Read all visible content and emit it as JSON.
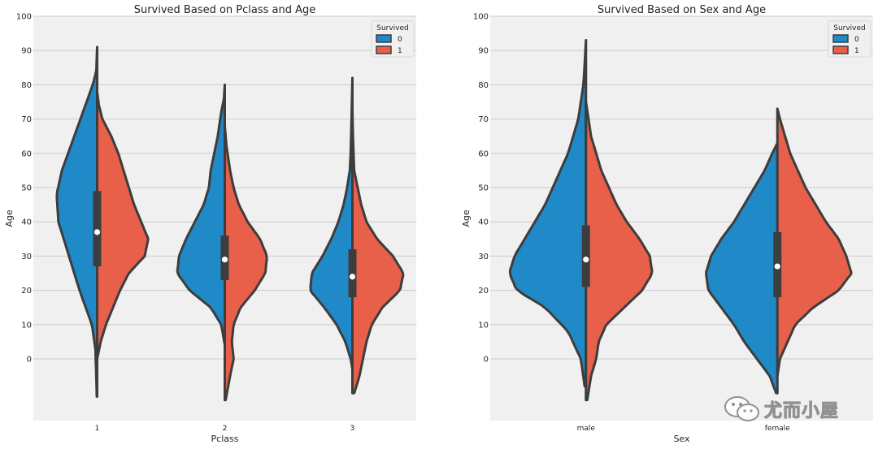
{
  "chart_data": [
    {
      "type": "violin",
      "title": "Survived Based on Pclass and Age",
      "xlabel": "Pclass",
      "ylabel": "Age",
      "categories": [
        "1",
        "2",
        "3"
      ],
      "yticks": [
        0,
        10,
        20,
        30,
        40,
        50,
        60,
        70,
        80,
        90,
        100
      ],
      "ylim": [
        -18,
        100
      ],
      "split": true,
      "legend": {
        "title": "Survived",
        "position": "top-right",
        "entries": [
          {
            "label": "0",
            "color": "#1f8ac7"
          },
          {
            "label": "1",
            "color": "#e8604a"
          }
        ]
      },
      "violins": [
        {
          "category": "1",
          "min": -11,
          "max": 91,
          "q1": 27,
          "q3": 49,
          "median": 37,
          "left_profile": [
            [
              -11,
              0.2
            ],
            [
              -5,
              0.5
            ],
            [
              3,
              1
            ],
            [
              10,
              3
            ],
            [
              20,
              10
            ],
            [
              30,
              16
            ],
            [
              40,
              22
            ],
            [
              48,
              23
            ],
            [
              55,
              20
            ],
            [
              65,
              13
            ],
            [
              75,
              6
            ],
            [
              80,
              2.5
            ],
            [
              84,
              0.5
            ],
            [
              91,
              0
            ]
          ],
          "right_profile": [
            [
              0,
              0
            ],
            [
              5,
              2
            ],
            [
              10,
              5
            ],
            [
              15,
              9
            ],
            [
              20,
              13
            ],
            [
              25,
              18
            ],
            [
              30,
              27
            ],
            [
              35,
              29
            ],
            [
              40,
              25
            ],
            [
              45,
              21
            ],
            [
              50,
              18
            ],
            [
              55,
              15
            ],
            [
              60,
              12
            ],
            [
              65,
              8
            ],
            [
              70,
              3
            ],
            [
              74,
              1
            ],
            [
              78,
              0
            ]
          ]
        },
        {
          "category": "2",
          "min": -12,
          "max": 80,
          "q1": 23,
          "q3": 36,
          "median": 29,
          "left_profile": [
            [
              4,
              0
            ],
            [
              10,
              2
            ],
            [
              15,
              8
            ],
            [
              20,
              20
            ],
            [
              25,
              27
            ],
            [
              30,
              26
            ],
            [
              35,
              22
            ],
            [
              40,
              17
            ],
            [
              45,
              12
            ],
            [
              50,
              9
            ],
            [
              55,
              8
            ],
            [
              60,
              6
            ],
            [
              65,
              4
            ],
            [
              72,
              2
            ],
            [
              76,
              0.5
            ],
            [
              80,
              0
            ]
          ],
          "right_profile": [
            [
              -12,
              0.5
            ],
            [
              -5,
              3
            ],
            [
              0,
              5
            ],
            [
              5,
              4
            ],
            [
              10,
              5
            ],
            [
              15,
              9
            ],
            [
              20,
              17
            ],
            [
              25,
              23
            ],
            [
              30,
              24
            ],
            [
              35,
              20
            ],
            [
              40,
              13
            ],
            [
              45,
              8
            ],
            [
              50,
              5
            ],
            [
              55,
              3
            ],
            [
              62,
              1
            ],
            [
              68,
              0
            ]
          ]
        },
        {
          "category": "3",
          "min": -10,
          "max": 82,
          "q1": 18,
          "q3": 32,
          "median": 24,
          "left_profile": [
            [
              -3,
              0
            ],
            [
              0,
              1
            ],
            [
              5,
              4
            ],
            [
              10,
              9
            ],
            [
              15,
              16
            ],
            [
              20,
              24
            ],
            [
              25,
              23
            ],
            [
              30,
              17
            ],
            [
              35,
              12
            ],
            [
              40,
              8
            ],
            [
              45,
              5
            ],
            [
              50,
              3
            ],
            [
              55,
              1.5
            ],
            [
              60,
              1
            ],
            [
              70,
              0.5
            ],
            [
              82,
              0
            ]
          ],
          "right_profile": [
            [
              -10,
              1
            ],
            [
              -5,
              4
            ],
            [
              0,
              6
            ],
            [
              5,
              8
            ],
            [
              10,
              11
            ],
            [
              15,
              17
            ],
            [
              20,
              27
            ],
            [
              25,
              29
            ],
            [
              30,
              23
            ],
            [
              35,
              14
            ],
            [
              40,
              8
            ],
            [
              45,
              5
            ],
            [
              50,
              3
            ],
            [
              55,
              1
            ],
            [
              65,
              0.3
            ],
            [
              73,
              0
            ]
          ]
        }
      ]
    },
    {
      "type": "violin",
      "title": "Survived Based on Sex and Age",
      "xlabel": "Sex",
      "ylabel": "Age",
      "categories": [
        "male",
        "female"
      ],
      "yticks": [
        0,
        10,
        20,
        30,
        40,
        50,
        60,
        70,
        80,
        90,
        100
      ],
      "ylim": [
        -18,
        100
      ],
      "split": true,
      "legend": {
        "title": "Survived",
        "position": "top-right",
        "entries": [
          {
            "label": "0",
            "color": "#1f8ac7"
          },
          {
            "label": "1",
            "color": "#e8604a"
          }
        ]
      },
      "violins": [
        {
          "category": "male",
          "min": -12,
          "max": 93,
          "q1": 21,
          "q3": 39,
          "median": 29,
          "left_profile": [
            [
              -8,
              0.5
            ],
            [
              0,
              2
            ],
            [
              8,
              7
            ],
            [
              15,
              16
            ],
            [
              20,
              27
            ],
            [
              25,
              30
            ],
            [
              30,
              28
            ],
            [
              35,
              24
            ],
            [
              40,
              20
            ],
            [
              45,
              16
            ],
            [
              50,
              13
            ],
            [
              55,
              10
            ],
            [
              60,
              7
            ],
            [
              65,
              5
            ],
            [
              70,
              3
            ],
            [
              75,
              2
            ],
            [
              80,
              1
            ],
            [
              86,
              0.5
            ],
            [
              93,
              0
            ]
          ],
          "right_profile": [
            [
              -12,
              0.5
            ],
            [
              -5,
              2
            ],
            [
              0,
              4
            ],
            [
              5,
              5
            ],
            [
              10,
              8
            ],
            [
              15,
              15
            ],
            [
              20,
              22
            ],
            [
              25,
              26
            ],
            [
              30,
              25
            ],
            [
              35,
              21
            ],
            [
              40,
              16
            ],
            [
              45,
              12
            ],
            [
              50,
              9
            ],
            [
              55,
              6
            ],
            [
              60,
              4
            ],
            [
              65,
              2
            ],
            [
              70,
              1
            ],
            [
              75,
              0
            ]
          ]
        },
        {
          "category": "female",
          "min": -10,
          "max": 73,
          "q1": 18,
          "q3": 37,
          "median": 27,
          "left_profile": [
            [
              -10,
              0.5
            ],
            [
              -5,
              3
            ],
            [
              0,
              8
            ],
            [
              5,
              13
            ],
            [
              10,
              17
            ],
            [
              15,
              22
            ],
            [
              20,
              27
            ],
            [
              25,
              28
            ],
            [
              30,
              26
            ],
            [
              35,
              22
            ],
            [
              40,
              17
            ],
            [
              45,
              13
            ],
            [
              50,
              9
            ],
            [
              55,
              5
            ],
            [
              60,
              2
            ],
            [
              63,
              0
            ]
          ],
          "right_profile": [
            [
              -5,
              0
            ],
            [
              0,
              1
            ],
            [
              5,
              4
            ],
            [
              10,
              7
            ],
            [
              15,
              14
            ],
            [
              20,
              24
            ],
            [
              25,
              29
            ],
            [
              30,
              27
            ],
            [
              35,
              24
            ],
            [
              40,
              19
            ],
            [
              45,
              15
            ],
            [
              50,
              11
            ],
            [
              55,
              8
            ],
            [
              60,
              5
            ],
            [
              65,
              3
            ],
            [
              70,
              1
            ],
            [
              73,
              0
            ]
          ]
        }
      ]
    }
  ],
  "watermark": {
    "text": "尤而小屋"
  }
}
